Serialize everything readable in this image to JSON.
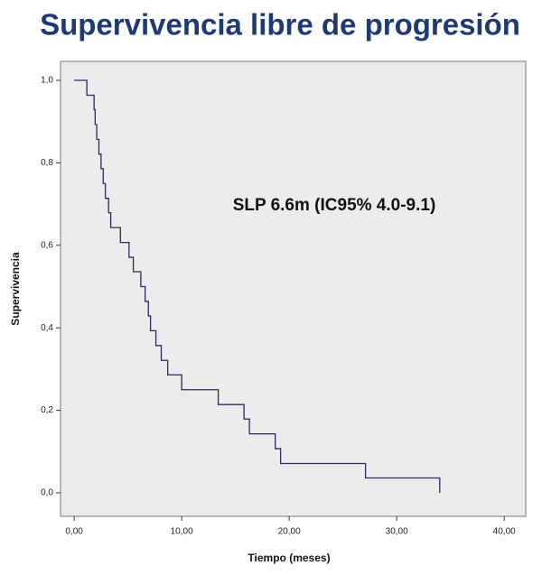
{
  "chart_data": {
    "type": "step",
    "title": "Supervivencia libre de progresión",
    "annotation": "SLP 6.6m (IC95% 4.0-9.1)",
    "xlabel": "Tiempo (meses)",
    "ylabel": "Supervivencia",
    "x": [
      0,
      1.18,
      1.85,
      1.95,
      2.1,
      2.3,
      2.5,
      2.7,
      2.9,
      3.2,
      3.4,
      4.3,
      5.1,
      5.5,
      6.2,
      6.6,
      6.9,
      7.1,
      7.6,
      8.1,
      8.7,
      10.0,
      13.4,
      15.8,
      16.3,
      18.7,
      19.2,
      27.1,
      34.0
    ],
    "values": [
      1,
      0.964,
      0.929,
      0.893,
      0.857,
      0.821,
      0.786,
      0.75,
      0.714,
      0.679,
      0.643,
      0.607,
      0.571,
      0.536,
      0.5,
      0.464,
      0.429,
      0.393,
      0.357,
      0.321,
      0.286,
      0.25,
      0.214,
      0.179,
      0.143,
      0.107,
      0.071,
      0.036,
      0
    ],
    "color": "#2b2b5e",
    "xlim": [
      -1.27,
      42
    ],
    "ylim": [
      -0.057,
      1.046
    ],
    "xticks": [
      {
        "value": 0,
        "label": "0,00"
      },
      {
        "value": 10,
        "label": "10,00"
      },
      {
        "value": 20,
        "label": "20,00"
      },
      {
        "value": 30,
        "label": "30,00"
      },
      {
        "value": 40,
        "label": "40,00"
      }
    ],
    "yticks": [
      {
        "value": 0,
        "label": "0,0"
      },
      {
        "value": 0.2,
        "label": "0,2"
      },
      {
        "value": 0.4,
        "label": "0,4"
      },
      {
        "value": 0.6,
        "label": "0,6"
      },
      {
        "value": 0.8,
        "label": "0,8"
      },
      {
        "value": 1,
        "label": "1,0"
      }
    ]
  }
}
